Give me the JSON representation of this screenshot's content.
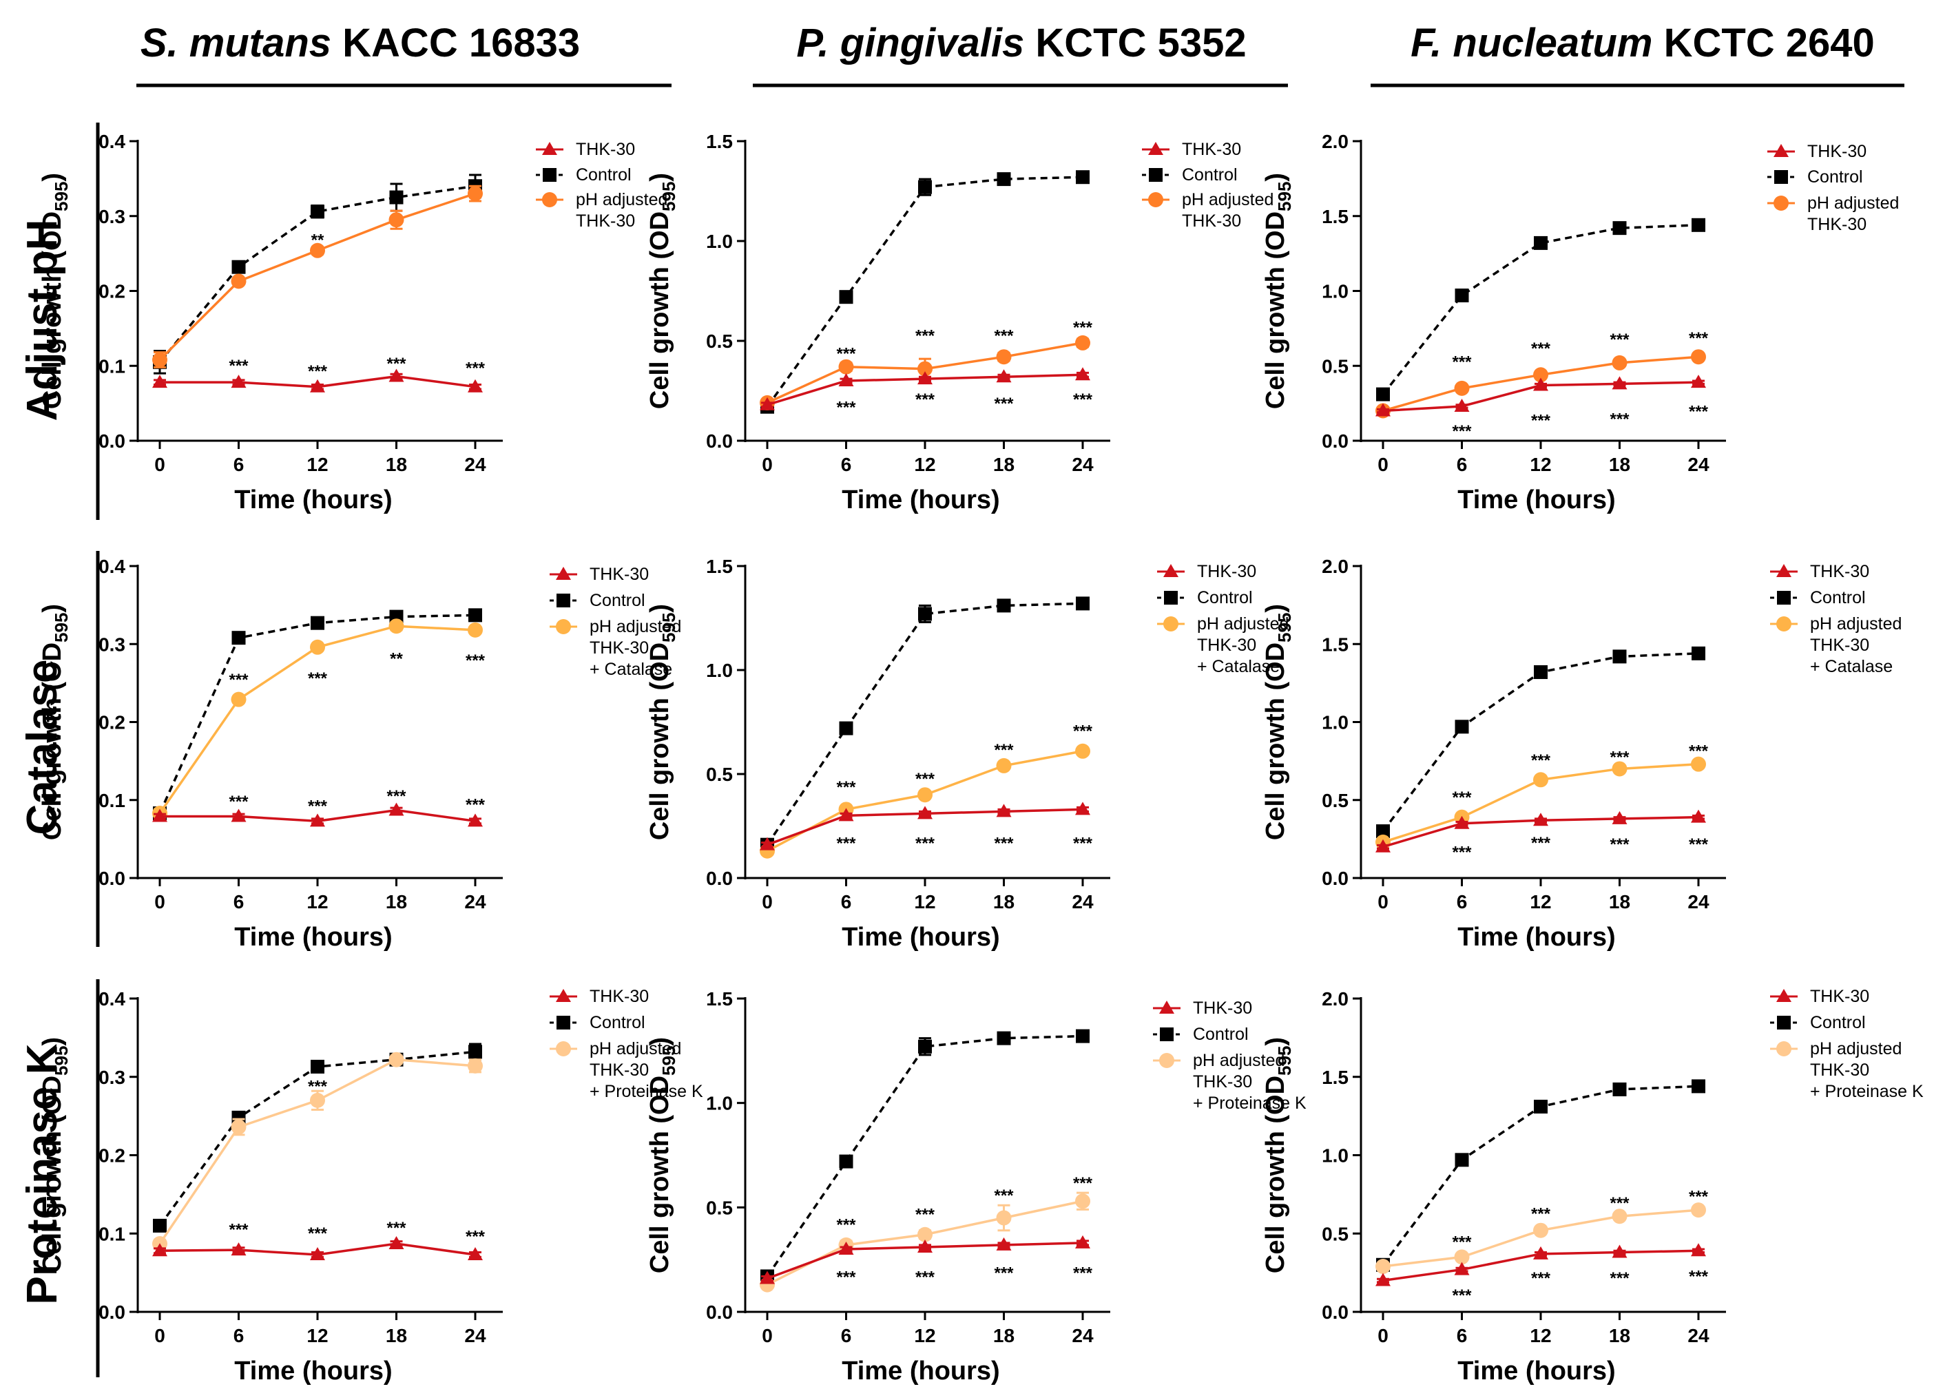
{
  "figure": {
    "columns": [
      {
        "italic": "S. mutans",
        "rest": " KACC 16833"
      },
      {
        "italic": "P. gingivalis",
        "rest": " KCTC 5352"
      },
      {
        "italic": "F. nucleatum",
        "rest": " KCTC 2640"
      }
    ],
    "rows": [
      "Adjust pH",
      "Catalase",
      "Proteinase K"
    ]
  },
  "colors": {
    "thk": "#d0121b",
    "control": "#000000",
    "ph_adjusted": "#ff7f27",
    "catalase": "#ffb347",
    "proteinase": "#ffc98f"
  },
  "chart_data": [
    {
      "type": "line",
      "row": 0,
      "col": 0,
      "xlabel": "Time (hours)",
      "ylabel": "Cell growth (OD595)",
      "x": [
        0,
        6,
        12,
        18,
        24
      ],
      "ylim": [
        0,
        0.4
      ],
      "yticks": [
        "0.0",
        "0.1",
        "0.2",
        "0.3",
        "0.4"
      ],
      "series": [
        {
          "name": "THK-30",
          "values": [
            0.078,
            0.078,
            0.072,
            0.086,
            0.072
          ],
          "err": [
            0.003,
            0.003,
            0.003,
            0.003,
            0.003
          ],
          "style": "thk"
        },
        {
          "name": "Control",
          "values": [
            0.105,
            0.232,
            0.306,
            0.325,
            0.34
          ],
          "err": [
            0.015,
            0.005,
            0.008,
            0.018,
            0.015
          ],
          "style": "control"
        },
        {
          "name": "pH adjusted THK-30",
          "values": [
            0.108,
            0.213,
            0.254,
            0.295,
            0.33
          ],
          "err": [
            0.01,
            0.004,
            0.005,
            0.012,
            0.01
          ],
          "style": "ph_adjusted"
        }
      ],
      "annotations": [
        {
          "x": 12,
          "y": 0.269,
          "text": "**"
        },
        {
          "x": 6,
          "y": 0.101,
          "text": "***"
        },
        {
          "x": 12,
          "y": 0.094,
          "text": "***"
        },
        {
          "x": 18,
          "y": 0.104,
          "text": "***"
        },
        {
          "x": 24,
          "y": 0.098,
          "text": "***"
        }
      ]
    },
    {
      "type": "line",
      "row": 0,
      "col": 1,
      "xlabel": "Time (hours)",
      "ylabel": "Cell growth (OD595)",
      "x": [
        0,
        6,
        12,
        18,
        24
      ],
      "ylim": [
        0,
        1.5
      ],
      "yticks": [
        "0.0",
        "0.5",
        "1.0",
        "1.5"
      ],
      "series": [
        {
          "name": "THK-30",
          "values": [
            0.18,
            0.3,
            0.31,
            0.32,
            0.33
          ],
          "err": [
            0.01,
            0.01,
            0.01,
            0.01,
            0.01
          ],
          "style": "thk"
        },
        {
          "name": "Control",
          "values": [
            0.17,
            0.72,
            1.27,
            1.31,
            1.32
          ],
          "err": [
            0.01,
            0.02,
            0.04,
            0.02,
            0.02
          ],
          "style": "control"
        },
        {
          "name": "pH adjusted THK-30",
          "values": [
            0.19,
            0.37,
            0.36,
            0.42,
            0.49
          ],
          "err": [
            0.01,
            0.02,
            0.05,
            0.02,
            0.02
          ],
          "style": "ph_adjusted"
        }
      ],
      "annotations": [
        {
          "x": 6,
          "y": 0.44,
          "text": "***"
        },
        {
          "x": 12,
          "y": 0.53,
          "text": "***"
        },
        {
          "x": 18,
          "y": 0.53,
          "text": "***"
        },
        {
          "x": 24,
          "y": 0.57,
          "text": "***"
        },
        {
          "x": 6,
          "y": 0.17,
          "text": "***"
        },
        {
          "x": 12,
          "y": 0.21,
          "text": "***"
        },
        {
          "x": 18,
          "y": 0.19,
          "text": "***"
        },
        {
          "x": 24,
          "y": 0.21,
          "text": "***"
        }
      ]
    },
    {
      "type": "line",
      "row": 0,
      "col": 2,
      "xlabel": "Time (hours)",
      "ylabel": "Cell growth (OD595)",
      "x": [
        0,
        6,
        12,
        18,
        24
      ],
      "ylim": [
        0,
        2.0
      ],
      "yticks": [
        "0.0",
        "0.5",
        "1.0",
        "1.5",
        "2.0"
      ],
      "series": [
        {
          "name": "THK-30",
          "values": [
            0.2,
            0.23,
            0.37,
            0.38,
            0.39
          ],
          "err": [
            0.01,
            0.01,
            0.01,
            0.01,
            0.01
          ],
          "style": "thk"
        },
        {
          "name": "Control",
          "values": [
            0.31,
            0.97,
            1.32,
            1.42,
            1.44
          ],
          "err": [
            0.01,
            0.01,
            0.01,
            0.01,
            0.01
          ],
          "style": "control"
        },
        {
          "name": "pH adjusted THK-30",
          "values": [
            0.2,
            0.35,
            0.44,
            0.52,
            0.56
          ],
          "err": [
            0.01,
            0.01,
            0.01,
            0.01,
            0.01
          ],
          "style": "ph_adjusted"
        }
      ],
      "annotations": [
        {
          "x": 6,
          "y": 0.53,
          "text": "***"
        },
        {
          "x": 12,
          "y": 0.62,
          "text": "***"
        },
        {
          "x": 18,
          "y": 0.68,
          "text": "***"
        },
        {
          "x": 24,
          "y": 0.69,
          "text": "***"
        },
        {
          "x": 6,
          "y": 0.07,
          "text": "***"
        },
        {
          "x": 12,
          "y": 0.14,
          "text": "***"
        },
        {
          "x": 18,
          "y": 0.15,
          "text": "***"
        },
        {
          "x": 24,
          "y": 0.2,
          "text": "***"
        }
      ]
    },
    {
      "type": "line",
      "row": 1,
      "col": 0,
      "xlabel": "Time (hours)",
      "ylabel": "Cell growth (OD595)",
      "x": [
        0,
        6,
        12,
        18,
        24
      ],
      "ylim": [
        0,
        0.4
      ],
      "yticks": [
        "0.0",
        "0.1",
        "0.2",
        "0.3",
        "0.4"
      ],
      "series": [
        {
          "name": "THK-30",
          "values": [
            0.079,
            0.079,
            0.073,
            0.087,
            0.073
          ],
          "err": [
            0.003,
            0.003,
            0.003,
            0.003,
            0.003
          ],
          "style": "thk"
        },
        {
          "name": "Control",
          "values": [
            0.083,
            0.308,
            0.327,
            0.335,
            0.337
          ],
          "err": [
            0.005,
            0.004,
            0.004,
            0.004,
            0.004
          ],
          "style": "control"
        },
        {
          "name": "pH adjusted THK-30 + Catalase",
          "values": [
            0.083,
            0.229,
            0.296,
            0.323,
            0.318
          ],
          "err": [
            0.005,
            0.004,
            0.004,
            0.005,
            0.004
          ],
          "style": "catalase"
        }
      ],
      "annotations": [
        {
          "x": 6,
          "y": 0.255,
          "text": "***"
        },
        {
          "x": 12,
          "y": 0.257,
          "text": "***"
        },
        {
          "x": 18,
          "y": 0.282,
          "text": "**"
        },
        {
          "x": 24,
          "y": 0.28,
          "text": "***"
        },
        {
          "x": 6,
          "y": 0.099,
          "text": "***"
        },
        {
          "x": 12,
          "y": 0.093,
          "text": "***"
        },
        {
          "x": 18,
          "y": 0.106,
          "text": "***"
        },
        {
          "x": 24,
          "y": 0.095,
          "text": "***"
        }
      ]
    },
    {
      "type": "line",
      "row": 1,
      "col": 1,
      "xlabel": "Time (hours)",
      "ylabel": "Cell growth (OD595)",
      "x": [
        0,
        6,
        12,
        18,
        24
      ],
      "ylim": [
        0,
        1.5
      ],
      "yticks": [
        "0.0",
        "0.5",
        "1.0",
        "1.5"
      ],
      "series": [
        {
          "name": "THK-30",
          "values": [
            0.16,
            0.3,
            0.31,
            0.32,
            0.33
          ],
          "err": [
            0.01,
            0.01,
            0.01,
            0.01,
            0.01
          ],
          "style": "thk"
        },
        {
          "name": "Control",
          "values": [
            0.16,
            0.72,
            1.27,
            1.31,
            1.32
          ],
          "err": [
            0.01,
            0.02,
            0.04,
            0.02,
            0.02
          ],
          "style": "control"
        },
        {
          "name": "pH adjusted THK-30 + Catalase",
          "values": [
            0.13,
            0.33,
            0.4,
            0.54,
            0.61
          ],
          "err": [
            0.01,
            0.01,
            0.01,
            0.01,
            0.01
          ],
          "style": "catalase"
        }
      ],
      "annotations": [
        {
          "x": 6,
          "y": 0.44,
          "text": "***"
        },
        {
          "x": 12,
          "y": 0.48,
          "text": "***"
        },
        {
          "x": 18,
          "y": 0.62,
          "text": "***"
        },
        {
          "x": 24,
          "y": 0.71,
          "text": "***"
        },
        {
          "x": 6,
          "y": 0.17,
          "text": "***"
        },
        {
          "x": 12,
          "y": 0.17,
          "text": "***"
        },
        {
          "x": 18,
          "y": 0.17,
          "text": "***"
        },
        {
          "x": 24,
          "y": 0.17,
          "text": "***"
        }
      ]
    },
    {
      "type": "line",
      "row": 1,
      "col": 2,
      "xlabel": "Time (hours)",
      "ylabel": "Cell growth (OD595)",
      "x": [
        0,
        6,
        12,
        18,
        24
      ],
      "ylim": [
        0,
        2.0
      ],
      "yticks": [
        "0.0",
        "0.5",
        "1.0",
        "1.5",
        "2.0"
      ],
      "series": [
        {
          "name": "THK-30",
          "values": [
            0.2,
            0.35,
            0.37,
            0.38,
            0.39
          ],
          "err": [
            0.01,
            0.01,
            0.01,
            0.01,
            0.01
          ],
          "style": "thk"
        },
        {
          "name": "Control",
          "values": [
            0.3,
            0.97,
            1.32,
            1.42,
            1.44
          ],
          "err": [
            0.01,
            0.01,
            0.01,
            0.01,
            0.01
          ],
          "style": "control"
        },
        {
          "name": "pH adjusted THK-30 + Catalase",
          "values": [
            0.23,
            0.39,
            0.63,
            0.7,
            0.73
          ],
          "err": [
            0.01,
            0.01,
            0.01,
            0.01,
            0.01
          ],
          "style": "catalase"
        }
      ],
      "annotations": [
        {
          "x": 6,
          "y": 0.52,
          "text": "***"
        },
        {
          "x": 12,
          "y": 0.76,
          "text": "***"
        },
        {
          "x": 18,
          "y": 0.78,
          "text": "***"
        },
        {
          "x": 24,
          "y": 0.82,
          "text": "***"
        },
        {
          "x": 6,
          "y": 0.17,
          "text": "***"
        },
        {
          "x": 12,
          "y": 0.23,
          "text": "***"
        },
        {
          "x": 18,
          "y": 0.22,
          "text": "***"
        },
        {
          "x": 24,
          "y": 0.22,
          "text": "***"
        }
      ]
    },
    {
      "type": "line",
      "row": 2,
      "col": 0,
      "xlabel": "Time (hours)",
      "ylabel": "Cell growth (OD595)",
      "x": [
        0,
        6,
        12,
        18,
        24
      ],
      "ylim": [
        0,
        0.4
      ],
      "yticks": [
        "0.0",
        "0.1",
        "0.2",
        "0.3",
        "0.4"
      ],
      "series": [
        {
          "name": "THK-30",
          "values": [
            0.078,
            0.079,
            0.073,
            0.087,
            0.073
          ],
          "err": [
            0.003,
            0.003,
            0.003,
            0.003,
            0.003
          ],
          "style": "thk"
        },
        {
          "name": "Control",
          "values": [
            0.11,
            0.248,
            0.313,
            0.322,
            0.332
          ],
          "err": [
            0.005,
            0.005,
            0.005,
            0.005,
            0.01
          ],
          "style": "control"
        },
        {
          "name": "pH adjusted THK-30 + Proteinase K",
          "values": [
            0.087,
            0.236,
            0.27,
            0.322,
            0.314
          ],
          "err": [
            0.005,
            0.01,
            0.012,
            0.005,
            0.008
          ],
          "style": "proteinase"
        }
      ],
      "annotations": [
        {
          "x": 12,
          "y": 0.289,
          "text": "***"
        },
        {
          "x": 6,
          "y": 0.106,
          "text": "***"
        },
        {
          "x": 12,
          "y": 0.101,
          "text": "***"
        },
        {
          "x": 18,
          "y": 0.108,
          "text": "***"
        },
        {
          "x": 24,
          "y": 0.097,
          "text": "***"
        }
      ]
    },
    {
      "type": "line",
      "row": 2,
      "col": 1,
      "xlabel": "Time (hours)",
      "ylabel": "Cell growth (OD595)",
      "x": [
        0,
        6,
        12,
        18,
        24
      ],
      "ylim": [
        0,
        1.5
      ],
      "yticks": [
        "0.0",
        "0.5",
        "1.0",
        "1.5"
      ],
      "series": [
        {
          "name": "THK-30",
          "values": [
            0.16,
            0.3,
            0.31,
            0.32,
            0.33
          ],
          "err": [
            0.01,
            0.01,
            0.01,
            0.01,
            0.01
          ],
          "style": "thk"
        },
        {
          "name": "Control",
          "values": [
            0.17,
            0.72,
            1.27,
            1.31,
            1.32
          ],
          "err": [
            0.01,
            0.02,
            0.04,
            0.02,
            0.02
          ],
          "style": "control"
        },
        {
          "name": "pH adjusted THK-30 + Proteinase K",
          "values": [
            0.13,
            0.32,
            0.37,
            0.45,
            0.53
          ],
          "err": [
            0.01,
            0.02,
            0.02,
            0.06,
            0.04
          ],
          "style": "proteinase"
        }
      ],
      "annotations": [
        {
          "x": 6,
          "y": 0.42,
          "text": "***"
        },
        {
          "x": 12,
          "y": 0.47,
          "text": "***"
        },
        {
          "x": 18,
          "y": 0.56,
          "text": "***"
        },
        {
          "x": 24,
          "y": 0.62,
          "text": "***"
        },
        {
          "x": 6,
          "y": 0.17,
          "text": "***"
        },
        {
          "x": 12,
          "y": 0.17,
          "text": "***"
        },
        {
          "x": 18,
          "y": 0.19,
          "text": "***"
        },
        {
          "x": 24,
          "y": 0.19,
          "text": "***"
        }
      ]
    },
    {
      "type": "line",
      "row": 2,
      "col": 2,
      "xlabel": "Time (hours)",
      "ylabel": "Cell growth (OD595)",
      "x": [
        0,
        6,
        12,
        18,
        24
      ],
      "ylim": [
        0,
        2.0
      ],
      "yticks": [
        "0.0",
        "0.5",
        "1.0",
        "1.5",
        "2.0"
      ],
      "series": [
        {
          "name": "THK-30",
          "values": [
            0.2,
            0.27,
            0.37,
            0.38,
            0.39
          ],
          "err": [
            0.01,
            0.01,
            0.01,
            0.01,
            0.01
          ],
          "style": "thk"
        },
        {
          "name": "Control",
          "values": [
            0.3,
            0.97,
            1.31,
            1.42,
            1.44
          ],
          "err": [
            0.01,
            0.01,
            0.01,
            0.01,
            0.01
          ],
          "style": "control"
        },
        {
          "name": "pH adjusted THK-30 + Proteinase K",
          "values": [
            0.29,
            0.35,
            0.52,
            0.61,
            0.65
          ],
          "err": [
            0.01,
            0.01,
            0.01,
            0.01,
            0.01
          ],
          "style": "proteinase"
        }
      ],
      "annotations": [
        {
          "x": 6,
          "y": 0.45,
          "text": "***"
        },
        {
          "x": 12,
          "y": 0.63,
          "text": "***"
        },
        {
          "x": 18,
          "y": 0.7,
          "text": "***"
        },
        {
          "x": 24,
          "y": 0.74,
          "text": "***"
        },
        {
          "x": 6,
          "y": 0.11,
          "text": "***"
        },
        {
          "x": 12,
          "y": 0.22,
          "text": "***"
        },
        {
          "x": 18,
          "y": 0.22,
          "text": "***"
        },
        {
          "x": 24,
          "y": 0.23,
          "text": "***"
        }
      ]
    }
  ]
}
